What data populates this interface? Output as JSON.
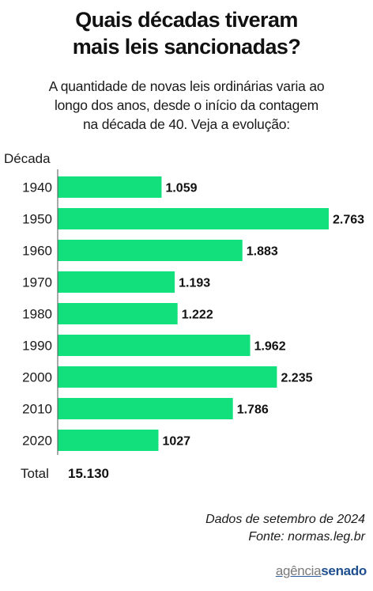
{
  "title_line1": "Quais décadas tiveram",
  "title_line2": "mais leis sancionadas?",
  "subtitle_line1": "A quantidade de novas leis ordinárias varia ao",
  "subtitle_line2": "longo dos anos, desde o início da contagem",
  "subtitle_line3": "na década de 40. Veja a evolução:",
  "total_label": "Total",
  "total_value": "15.130",
  "source_line1": "Dados de setembro de 2024",
  "source_line2": "Fonte: normas.leg.br",
  "brand_part1": "agência",
  "brand_part2": "senado",
  "colors": {
    "bar": "#12e07c"
  },
  "chart_data": {
    "type": "bar",
    "orientation": "horizontal",
    "ylabel": "Década",
    "categories": [
      "1940",
      "1950",
      "1960",
      "1970",
      "1980",
      "1990",
      "2000",
      "2010",
      "2020"
    ],
    "values": [
      1059,
      2763,
      1883,
      1193,
      1222,
      1962,
      2235,
      1786,
      1027
    ],
    "value_labels": [
      "1.059",
      "2.763",
      "1.883",
      "1.193",
      "1.222",
      "1.962",
      "2.235",
      "1.786",
      "1027"
    ]
  }
}
